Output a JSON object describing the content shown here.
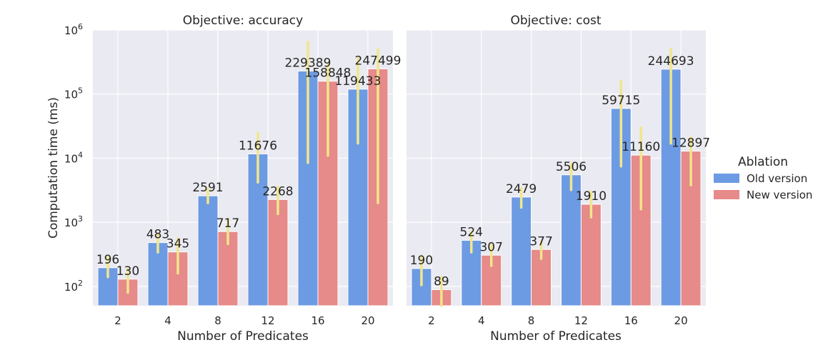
{
  "chart_data": {
    "type": "bar",
    "ylabel": "Computation time (ms)",
    "xlabel": "Number of Predicates",
    "yscale": "log",
    "ylim": [
      50,
      1000000
    ],
    "ytick_base": "10",
    "ytick_exponents": [
      "2",
      "3",
      "4",
      "5",
      "6"
    ],
    "categories": [
      "2",
      "4",
      "8",
      "12",
      "16",
      "20"
    ],
    "grid": true,
    "legend": {
      "title": "Ablation",
      "placement": "right",
      "entries": [
        "Old version",
        "New version"
      ]
    },
    "colors": {
      "old": "#6d9be3",
      "new": "#e68a8a",
      "error": "#f0e68c"
    },
    "panels": [
      {
        "title": "Objective: accuracy",
        "series": [
          {
            "name": "Old version",
            "values": [
              196,
              483,
              2591,
              11676,
              229389,
              119433
            ],
            "labels": [
              "196",
              "483",
              "2591",
              "11676",
              "229389",
              "119433"
            ],
            "err_low": [
              140,
              340,
              2000,
              4200,
              8500,
              17000
            ],
            "err_high": [
              290,
              660,
              3400,
              25000,
              650000,
              360000
            ]
          },
          {
            "name": "New version",
            "values": [
              130,
              345,
              717,
              2268,
              158848,
              247499
            ],
            "labels": [
              "130",
              "345",
              "717",
              "2268",
              "158848",
              "247499"
            ],
            "err_low": [
              80,
              160,
              460,
              1350,
              11000,
              2000
            ],
            "err_high": [
              190,
              560,
              1100,
              3600,
              300000,
              500000
            ]
          }
        ]
      },
      {
        "title": "Objective: cost",
        "series": [
          {
            "name": "Old version",
            "values": [
              190,
              524,
              2479,
              5506,
              59715,
              244693
            ],
            "labels": [
              "190",
              "524",
              "2479",
              "5506",
              "59715",
              "244693"
            ],
            "err_low": [
              105,
              340,
              1700,
              3200,
              7500,
              17000
            ],
            "err_high": [
              300,
              720,
              3400,
              8200,
              160000,
              500000
            ]
          },
          {
            "name": "New version",
            "values": [
              89,
              307,
              377,
              1910,
              11160,
              12897
            ],
            "labels": [
              "89",
              "307",
              "377",
              "1910",
              "11160",
              "12897"
            ],
            "err_low": [
              45,
              210,
              270,
              1200,
              1600,
              3800
            ],
            "err_high": [
              140,
              440,
              500,
              3000,
              30000,
              21000
            ]
          }
        ]
      }
    ]
  }
}
